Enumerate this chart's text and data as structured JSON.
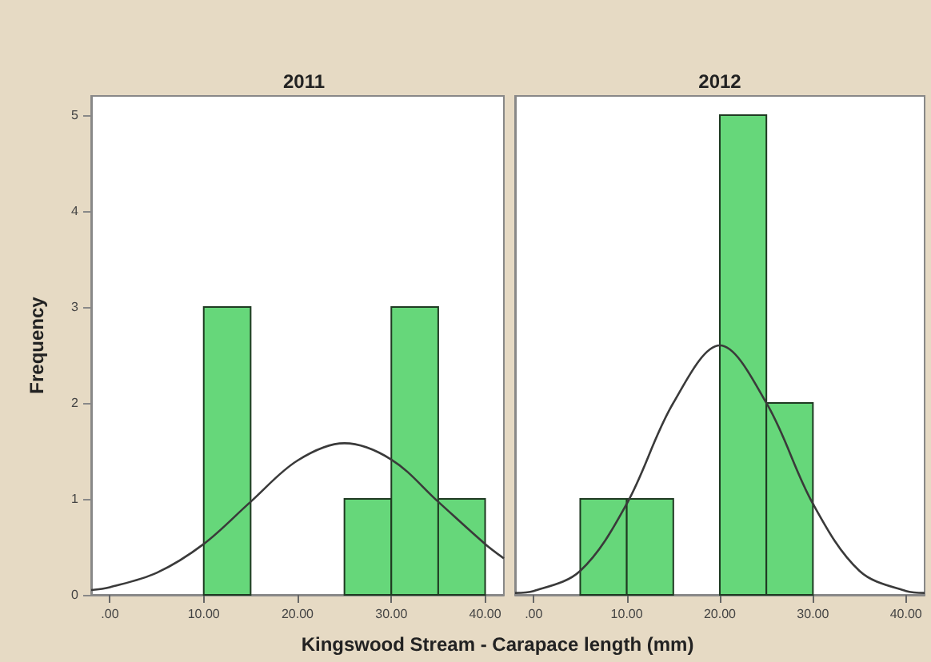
{
  "chart_data": [
    {
      "type": "histogram",
      "title": "2011",
      "ylabel": "Frequency",
      "xlabel": "Kingswood Stream - Carapace length (mm)",
      "xlim": [
        -2,
        42
      ],
      "xticks": [
        {
          "value": 0,
          "label": ".00"
        },
        {
          "value": 10,
          "label": "10.00"
        },
        {
          "value": 20,
          "label": "20.00"
        },
        {
          "value": 30,
          "label": "30.00"
        },
        {
          "value": 40,
          "label": "40.00"
        }
      ],
      "ylim": [
        0,
        5.2
      ],
      "yticks": [
        0,
        1,
        2,
        3,
        4,
        5
      ],
      "grid": false,
      "series": [
        {
          "type": "histogram",
          "color": "#66d77a",
          "bins": [
            10,
            15,
            20,
            25,
            30,
            35,
            40
          ],
          "values": [
            3,
            0,
            0,
            1,
            3,
            1
          ]
        },
        {
          "type": "line",
          "color": "#3a3a3a",
          "x": [
            -2,
            0,
            5,
            10,
            15,
            20,
            25,
            30,
            35,
            40,
            42
          ],
          "values": [
            0.05,
            0.08,
            0.23,
            0.53,
            0.97,
            1.4,
            1.58,
            1.41,
            0.97,
            0.53,
            0.38
          ]
        }
      ]
    },
    {
      "type": "histogram",
      "title": "2012",
      "xlim": [
        -2,
        42
      ],
      "xticks": [
        {
          "value": 0,
          "label": ".00"
        },
        {
          "value": 10,
          "label": "10.00"
        },
        {
          "value": 20,
          "label": "20.00"
        },
        {
          "value": 30,
          "label": "30.00"
        },
        {
          "value": 40,
          "label": "40.00"
        }
      ],
      "ylim": [
        0,
        5.2
      ],
      "tick_labels": "x",
      "grid": false,
      "series": [
        {
          "type": "histogram",
          "color": "#66d77a",
          "bins": [
            5,
            10,
            15,
            20,
            25,
            30
          ],
          "values": [
            1,
            1,
            0,
            5,
            2
          ]
        },
        {
          "type": "line",
          "color": "#3a3a3a",
          "x": [
            -2,
            0,
            5,
            10,
            15,
            20,
            25,
            30,
            35,
            40,
            42
          ],
          "values": [
            0.02,
            0.04,
            0.25,
            0.95,
            2.0,
            2.6,
            2.0,
            0.95,
            0.25,
            0.04,
            0.02
          ]
        }
      ]
    }
  ]
}
